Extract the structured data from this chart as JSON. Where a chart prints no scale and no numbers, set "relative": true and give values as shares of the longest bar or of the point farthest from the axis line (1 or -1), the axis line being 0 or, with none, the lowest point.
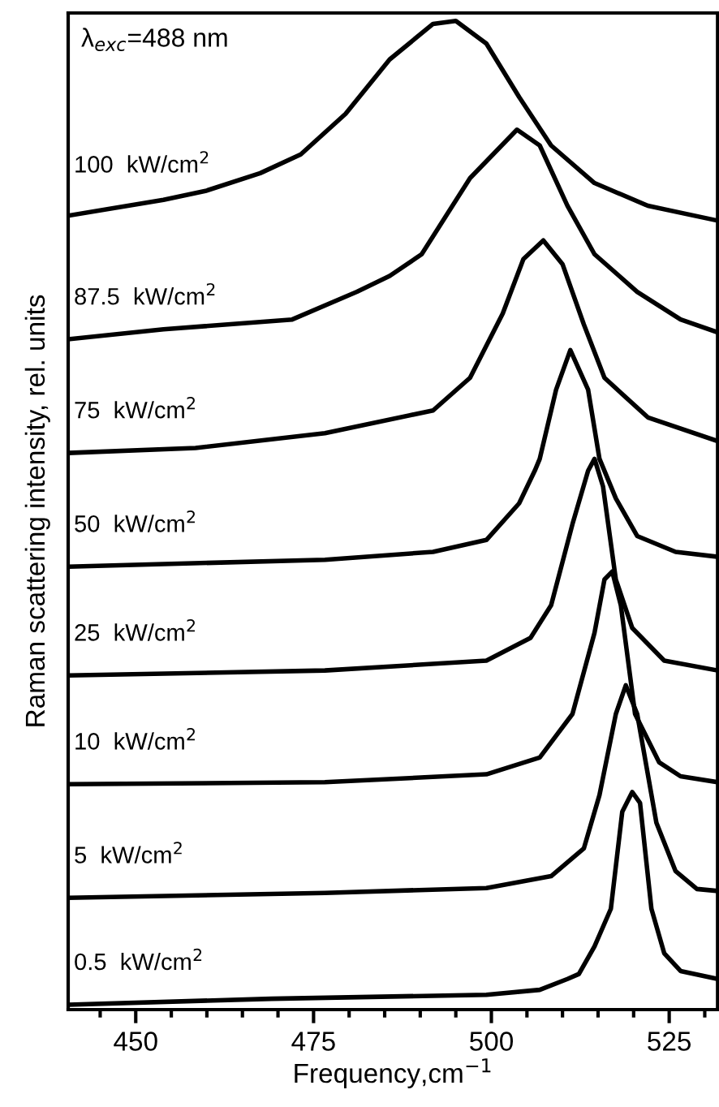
{
  "chart_data": {
    "type": "line",
    "relative": true,
    "xlabel": "Frequency,cm$^{−1}$",
    "ylabel": "Raman scattering intensity, rel. units",
    "annotations": [
      "λ$_{exc}$=488 nm"
    ],
    "xlim": [
      440.5,
      531.8
    ],
    "xticks": [
      {
        "value": 445,
        "label": null
      },
      450,
      {
        "value": 455,
        "label": null
      },
      {
        "value": 460,
        "label": null
      },
      {
        "value": 465,
        "label": null
      },
      {
        "value": 470,
        "label": null
      },
      475,
      {
        "value": 480,
        "label": null
      },
      {
        "value": 485,
        "label": null
      },
      {
        "value": 490,
        "label": null
      },
      {
        "value": 495,
        "label": null
      },
      500,
      {
        "value": 505,
        "label": null
      },
      {
        "value": 510,
        "label": null
      },
      {
        "value": 515,
        "label": null
      },
      {
        "value": 520,
        "label": null
      },
      525,
      {
        "value": 530,
        "label": null
      }
    ],
    "tick_labels": "x",
    "grid": false,
    "legend": false,
    "marker": "none",
    "line_style": "solid",
    "series": [
      {
        "name": "100  kW/cm$^{2}$",
        "color": "#000000",
        "x": [
          440.5,
          453.9,
          459.8,
          467.5,
          473.2,
          479.5,
          485.7,
          491.8,
          495.0,
          499.3,
          503.9,
          508.4,
          514.5,
          522.0,
          531.8
        ],
        "values": [
          0.803,
          0.819,
          0.828,
          0.846,
          0.865,
          0.906,
          0.961,
          0.997,
          1.0,
          0.977,
          0.923,
          0.874,
          0.836,
          0.813,
          0.798
        ]
      },
      {
        "name": "87.5  kW/cm$^{2}$",
        "color": "#000000",
        "x": [
          440.5,
          453.9,
          472.0,
          481.1,
          485.7,
          490.2,
          497.0,
          503.6,
          506.8,
          510.7,
          514.5,
          520.5,
          526.6,
          531.8
        ],
        "values": [
          0.678,
          0.688,
          0.698,
          0.726,
          0.742,
          0.764,
          0.841,
          0.89,
          0.874,
          0.813,
          0.764,
          0.726,
          0.698,
          0.685
        ]
      },
      {
        "name": "75  kW/cm$^{2}$",
        "color": "#000000",
        "x": [
          440.5,
          458.4,
          476.6,
          491.8,
          497.0,
          501.6,
          504.5,
          507.3,
          510.0,
          513.0,
          515.9,
          522.0,
          531.8
        ],
        "values": [
          0.563,
          0.568,
          0.583,
          0.606,
          0.639,
          0.704,
          0.759,
          0.778,
          0.754,
          0.693,
          0.639,
          0.599,
          0.575
        ]
      },
      {
        "name": "50  kW/cm$^{2}$",
        "color": "#000000",
        "x": [
          440.5,
          476.6,
          491.8,
          499.3,
          503.9,
          506.1,
          506.8,
          509.1,
          511.1,
          513.6,
          515.2,
          517.5,
          520.5,
          525.9,
          531.8
        ],
        "values": [
          0.448,
          0.455,
          0.463,
          0.475,
          0.512,
          0.545,
          0.557,
          0.627,
          0.667,
          0.627,
          0.557,
          0.517,
          0.479,
          0.463,
          0.458
        ]
      },
      {
        "name": "25  kW/cm$^{2}$",
        "color": "#000000",
        "x": [
          440.5,
          476.6,
          499.3,
          505.5,
          508.4,
          511.4,
          513.6,
          514.5,
          515.7,
          517.5,
          519.8,
          524.3,
          531.8
        ],
        "values": [
          0.338,
          0.343,
          0.353,
          0.376,
          0.409,
          0.491,
          0.545,
          0.557,
          0.529,
          0.435,
          0.386,
          0.353,
          0.343
        ]
      },
      {
        "name": "10  kW/cm$^{2}$",
        "color": "#000000",
        "x": [
          440.5,
          476.6,
          499.3,
          506.8,
          511.4,
          514.5,
          515.9,
          517.0,
          518.2,
          520.2,
          523.6,
          526.6,
          531.8
        ],
        "values": [
          0.228,
          0.23,
          0.238,
          0.255,
          0.299,
          0.381,
          0.435,
          0.443,
          0.409,
          0.299,
          0.25,
          0.236,
          0.23
        ]
      },
      {
        "name": "5  kW/cm$^{2}$",
        "color": "#000000",
        "x": [
          440.5,
          476.6,
          499.3,
          508.4,
          513.0,
          515.2,
          517.5,
          518.9,
          520.5,
          523.2,
          525.9,
          528.9,
          531.8
        ],
        "values": [
          0.113,
          0.118,
          0.123,
          0.135,
          0.163,
          0.217,
          0.299,
          0.328,
          0.299,
          0.189,
          0.14,
          0.122,
          0.12
        ]
      },
      {
        "name": "0.5  kW/cm$^{2}$",
        "color": "#000000",
        "x": [
          440.5,
          469.1,
          499.3,
          506.8,
          510.7,
          512.3,
          514.5,
          516.8,
          518.4,
          519.8,
          520.9,
          522.5,
          524.3,
          526.6,
          531.8
        ],
        "values": [
          0.005,
          0.011,
          0.015,
          0.02,
          0.031,
          0.036,
          0.064,
          0.102,
          0.2,
          0.22,
          0.209,
          0.102,
          0.057,
          0.039,
          0.031
        ]
      }
    ]
  }
}
